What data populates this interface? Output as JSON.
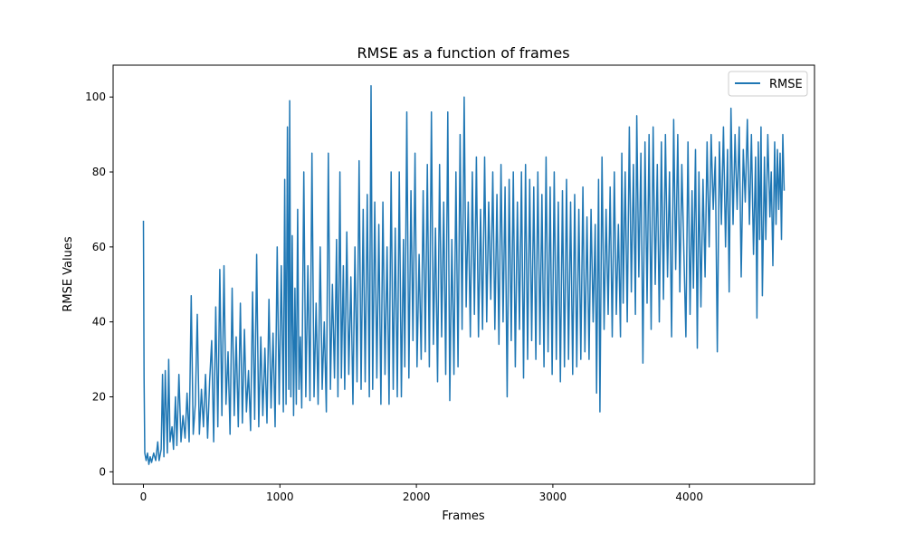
{
  "chart_data": {
    "type": "line",
    "title": "RMSE as a function of frames",
    "xlabel": "Frames",
    "ylabel": "RMSE Values",
    "xlim": [
      -222,
      4917
    ],
    "ylim": [
      -3.3,
      108.5
    ],
    "xticks": [
      0,
      1000,
      2000,
      3000,
      4000
    ],
    "yticks": [
      0,
      20,
      40,
      60,
      80,
      100
    ],
    "grid": false,
    "legend": {
      "placement": "top-right",
      "entries": [
        "RMSE"
      ]
    },
    "series": [
      {
        "name": "RMSE",
        "color": "#1f77b4",
        "points": [
          [
            0,
            67
          ],
          [
            5,
            25
          ],
          [
            10,
            5
          ],
          [
            20,
            3
          ],
          [
            30,
            5
          ],
          [
            40,
            2
          ],
          [
            50,
            4
          ],
          [
            60,
            2.5
          ],
          [
            75,
            5
          ],
          [
            90,
            3
          ],
          [
            105,
            8
          ],
          [
            115,
            3
          ],
          [
            130,
            6
          ],
          [
            140,
            26
          ],
          [
            150,
            4
          ],
          [
            160,
            27
          ],
          [
            175,
            5
          ],
          [
            185,
            30
          ],
          [
            195,
            8
          ],
          [
            210,
            12
          ],
          [
            220,
            6
          ],
          [
            235,
            20
          ],
          [
            245,
            7
          ],
          [
            260,
            26
          ],
          [
            275,
            8
          ],
          [
            290,
            15
          ],
          [
            305,
            9
          ],
          [
            320,
            21
          ],
          [
            335,
            8
          ],
          [
            350,
            47
          ],
          [
            365,
            10
          ],
          [
            380,
            18
          ],
          [
            395,
            42
          ],
          [
            410,
            10
          ],
          [
            425,
            22
          ],
          [
            440,
            12
          ],
          [
            455,
            26
          ],
          [
            470,
            9
          ],
          [
            485,
            24
          ],
          [
            500,
            35
          ],
          [
            515,
            8
          ],
          [
            530,
            44
          ],
          [
            545,
            12
          ],
          [
            560,
            54
          ],
          [
            575,
            15
          ],
          [
            590,
            55
          ],
          [
            605,
            18
          ],
          [
            620,
            32
          ],
          [
            635,
            10
          ],
          [
            650,
            49
          ],
          [
            665,
            15
          ],
          [
            680,
            36
          ],
          [
            695,
            12
          ],
          [
            710,
            45
          ],
          [
            725,
            13
          ],
          [
            740,
            38
          ],
          [
            755,
            16
          ],
          [
            770,
            27
          ],
          [
            785,
            11
          ],
          [
            800,
            48
          ],
          [
            815,
            14
          ],
          [
            830,
            58
          ],
          [
            845,
            12
          ],
          [
            860,
            36
          ],
          [
            875,
            15
          ],
          [
            890,
            33
          ],
          [
            905,
            13
          ],
          [
            920,
            46
          ],
          [
            935,
            17
          ],
          [
            950,
            37
          ],
          [
            965,
            12
          ],
          [
            980,
            60
          ],
          [
            995,
            18
          ],
          [
            1010,
            55
          ],
          [
            1025,
            16
          ],
          [
            1035,
            78
          ],
          [
            1045,
            18
          ],
          [
            1055,
            92
          ],
          [
            1065,
            22
          ],
          [
            1072,
            99
          ],
          [
            1080,
            20
          ],
          [
            1090,
            63
          ],
          [
            1100,
            15
          ],
          [
            1110,
            49
          ],
          [
            1120,
            18
          ],
          [
            1130,
            70
          ],
          [
            1140,
            22
          ],
          [
            1150,
            36
          ],
          [
            1160,
            17
          ],
          [
            1175,
            80
          ],
          [
            1190,
            20
          ],
          [
            1205,
            55
          ],
          [
            1220,
            19
          ],
          [
            1235,
            85
          ],
          [
            1250,
            20
          ],
          [
            1265,
            45
          ],
          [
            1280,
            18
          ],
          [
            1295,
            60
          ],
          [
            1310,
            22
          ],
          [
            1325,
            40
          ],
          [
            1340,
            16
          ],
          [
            1355,
            85
          ],
          [
            1370,
            22
          ],
          [
            1385,
            50
          ],
          [
            1400,
            25
          ],
          [
            1415,
            62
          ],
          [
            1425,
            20
          ],
          [
            1440,
            80
          ],
          [
            1450,
            25
          ],
          [
            1465,
            55
          ],
          [
            1475,
            22
          ],
          [
            1490,
            64
          ],
          [
            1505,
            26
          ],
          [
            1520,
            52
          ],
          [
            1535,
            18
          ],
          [
            1550,
            60
          ],
          [
            1565,
            24
          ],
          [
            1580,
            83
          ],
          [
            1595,
            22
          ],
          [
            1610,
            70
          ],
          [
            1625,
            24
          ],
          [
            1640,
            74
          ],
          [
            1655,
            20
          ],
          [
            1668,
            103
          ],
          [
            1680,
            22
          ],
          [
            1695,
            72
          ],
          [
            1710,
            25
          ],
          [
            1725,
            66
          ],
          [
            1740,
            18
          ],
          [
            1755,
            72
          ],
          [
            1770,
            26
          ],
          [
            1785,
            60
          ],
          [
            1800,
            18
          ],
          [
            1815,
            80
          ],
          [
            1830,
            22
          ],
          [
            1845,
            65
          ],
          [
            1860,
            20
          ],
          [
            1875,
            80
          ],
          [
            1890,
            20
          ],
          [
            1905,
            62
          ],
          [
            1915,
            28
          ],
          [
            1930,
            96
          ],
          [
            1945,
            25
          ],
          [
            1960,
            75
          ],
          [
            1975,
            35
          ],
          [
            1990,
            85
          ],
          [
            2005,
            28
          ],
          [
            2020,
            58
          ],
          [
            2035,
            30
          ],
          [
            2050,
            75
          ],
          [
            2065,
            32
          ],
          [
            2080,
            82
          ],
          [
            2095,
            28
          ],
          [
            2110,
            96
          ],
          [
            2125,
            34
          ],
          [
            2140,
            65
          ],
          [
            2155,
            24
          ],
          [
            2170,
            82
          ],
          [
            2185,
            36
          ],
          [
            2200,
            72
          ],
          [
            2215,
            26
          ],
          [
            2230,
            96
          ],
          [
            2245,
            19
          ],
          [
            2260,
            62
          ],
          [
            2275,
            26
          ],
          [
            2290,
            80
          ],
          [
            2305,
            28
          ],
          [
            2320,
            90
          ],
          [
            2335,
            38
          ],
          [
            2350,
            100
          ],
          [
            2365,
            44
          ],
          [
            2380,
            72
          ],
          [
            2395,
            36
          ],
          [
            2410,
            80
          ],
          [
            2425,
            42
          ],
          [
            2440,
            84
          ],
          [
            2455,
            36
          ],
          [
            2470,
            70
          ],
          [
            2485,
            38
          ],
          [
            2500,
            84
          ],
          [
            2515,
            40
          ],
          [
            2530,
            72
          ],
          [
            2545,
            46
          ],
          [
            2560,
            80
          ],
          [
            2575,
            38
          ],
          [
            2590,
            74
          ],
          [
            2605,
            34
          ],
          [
            2620,
            82
          ],
          [
            2635,
            40
          ],
          [
            2650,
            76
          ],
          [
            2665,
            20
          ],
          [
            2680,
            78
          ],
          [
            2695,
            35
          ],
          [
            2710,
            80
          ],
          [
            2725,
            28
          ],
          [
            2740,
            72
          ],
          [
            2755,
            38
          ],
          [
            2770,
            80
          ],
          [
            2785,
            25
          ],
          [
            2800,
            82
          ],
          [
            2815,
            30
          ],
          [
            2830,
            78
          ],
          [
            2845,
            35
          ],
          [
            2860,
            76
          ],
          [
            2875,
            30
          ],
          [
            2890,
            80
          ],
          [
            2905,
            34
          ],
          [
            2920,
            74
          ],
          [
            2935,
            28
          ],
          [
            2950,
            84
          ],
          [
            2965,
            32
          ],
          [
            2980,
            76
          ],
          [
            2995,
            26
          ],
          [
            3010,
            80
          ],
          [
            3025,
            30
          ],
          [
            3040,
            72
          ],
          [
            3055,
            24
          ],
          [
            3070,
            75
          ],
          [
            3085,
            28
          ],
          [
            3100,
            78
          ],
          [
            3115,
            30
          ],
          [
            3130,
            72
          ],
          [
            3145,
            26
          ],
          [
            3160,
            74
          ],
          [
            3175,
            28
          ],
          [
            3190,
            70
          ],
          [
            3205,
            30
          ],
          [
            3220,
            76
          ],
          [
            3235,
            32
          ],
          [
            3250,
            68
          ],
          [
            3265,
            30
          ],
          [
            3280,
            70
          ],
          [
            3295,
            40
          ],
          [
            3310,
            66
          ],
          [
            3320,
            21
          ],
          [
            3335,
            78
          ],
          [
            3345,
            16
          ],
          [
            3360,
            84
          ],
          [
            3375,
            38
          ],
          [
            3390,
            70
          ],
          [
            3405,
            42
          ],
          [
            3420,
            76
          ],
          [
            3435,
            36
          ],
          [
            3450,
            80
          ],
          [
            3465,
            42
          ],
          [
            3480,
            66
          ],
          [
            3495,
            36
          ],
          [
            3505,
            85
          ],
          [
            3515,
            45
          ],
          [
            3530,
            80
          ],
          [
            3545,
            40
          ],
          [
            3560,
            92
          ],
          [
            3575,
            48
          ],
          [
            3590,
            82
          ],
          [
            3605,
            42
          ],
          [
            3615,
            95
          ],
          [
            3630,
            52
          ],
          [
            3645,
            85
          ],
          [
            3660,
            29
          ],
          [
            3675,
            88
          ],
          [
            3690,
            45
          ],
          [
            3705,
            90
          ],
          [
            3720,
            38
          ],
          [
            3735,
            92
          ],
          [
            3750,
            50
          ],
          [
            3765,
            82
          ],
          [
            3780,
            40
          ],
          [
            3795,
            88
          ],
          [
            3810,
            46
          ],
          [
            3825,
            90
          ],
          [
            3840,
            52
          ],
          [
            3855,
            80
          ],
          [
            3870,
            36
          ],
          [
            3885,
            94
          ],
          [
            3900,
            54
          ],
          [
            3915,
            90
          ],
          [
            3930,
            48
          ],
          [
            3945,
            82
          ],
          [
            3960,
            58
          ],
          [
            3975,
            36
          ],
          [
            3990,
            88
          ],
          [
            4005,
            42
          ],
          [
            4020,
            75
          ],
          [
            4030,
            49
          ],
          [
            4045,
            86
          ],
          [
            4058,
            33
          ],
          [
            4070,
            80
          ],
          [
            4085,
            44
          ],
          [
            4100,
            78
          ],
          [
            4115,
            52
          ],
          [
            4130,
            88
          ],
          [
            4145,
            60
          ],
          [
            4160,
            90
          ],
          [
            4175,
            70
          ],
          [
            4190,
            84
          ],
          [
            4205,
            32
          ],
          [
            4220,
            88
          ],
          [
            4235,
            66
          ],
          [
            4250,
            92
          ],
          [
            4265,
            60
          ],
          [
            4280,
            86
          ],
          [
            4292,
            48
          ],
          [
            4305,
            97
          ],
          [
            4320,
            66
          ],
          [
            4335,
            90
          ],
          [
            4350,
            70
          ],
          [
            4365,
            92
          ],
          [
            4380,
            52
          ],
          [
            4395,
            86
          ],
          [
            4410,
            72
          ],
          [
            4425,
            94
          ],
          [
            4440,
            66
          ],
          [
            4455,
            90
          ],
          [
            4470,
            58
          ],
          [
            4485,
            84
          ],
          [
            4495,
            41
          ],
          [
            4505,
            88
          ],
          [
            4515,
            62
          ],
          [
            4525,
            92
          ],
          [
            4535,
            47
          ],
          [
            4550,
            84
          ],
          [
            4560,
            62
          ],
          [
            4575,
            90
          ],
          [
            4590,
            68
          ],
          [
            4600,
            80
          ],
          [
            4612,
            55
          ],
          [
            4625,
            88
          ],
          [
            4635,
            66
          ],
          [
            4645,
            86
          ],
          [
            4655,
            70
          ],
          [
            4665,
            85
          ],
          [
            4675,
            62
          ],
          [
            4685,
            90
          ],
          [
            4695,
            75
          ]
        ]
      }
    ]
  }
}
